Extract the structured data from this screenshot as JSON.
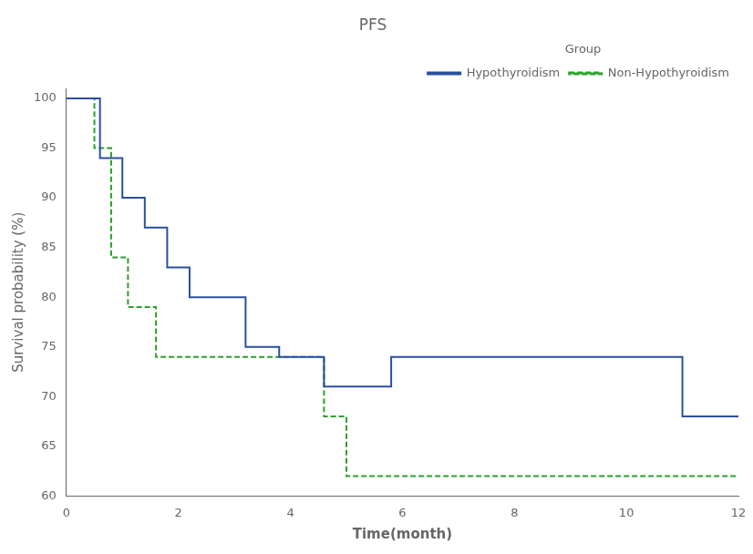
{
  "chart_data": {
    "type": "line",
    "title": "PFS",
    "x_label": "Time(month)",
    "y_label": "Survival probability (%)",
    "legend_title": "Group",
    "legend": "upper right",
    "grid": false,
    "xlim": [
      0,
      12
    ],
    "ylim": [
      60,
      101
    ],
    "xticks": [
      0,
      2,
      4,
      6,
      8,
      10,
      12
    ],
    "yticks": [
      60,
      65,
      70,
      75,
      80,
      85,
      90,
      95,
      100
    ],
    "series": [
      {
        "name": "Hypothyroidism",
        "color": "#2b4fa0",
        "line_style": "solid",
        "x": [
          0,
          0.6,
          0.6,
          1.0,
          1.0,
          1.4,
          1.4,
          1.8,
          1.8,
          2.2,
          2.2,
          2.7,
          2.7,
          3.2,
          3.2,
          3.8,
          3.8,
          4.6,
          4.6,
          5.8,
          5.8,
          11.0,
          11.0,
          12.0
        ],
        "values": [
          100,
          100,
          94,
          94,
          90,
          90,
          87,
          87,
          83,
          83,
          80,
          80,
          80,
          80,
          75,
          75,
          74,
          74,
          71,
          71,
          74,
          74,
          68,
          68
        ]
      },
      {
        "name": "Non-Hypothyroidism",
        "color": "#2ca02c",
        "line_style": "dashed",
        "x": [
          0,
          0.5,
          0.5,
          0.8,
          0.8,
          1.1,
          1.1,
          1.6,
          1.6,
          2.0,
          2.0,
          4.6,
          4.6,
          5.0,
          5.0,
          5.7,
          5.7,
          12.0
        ],
        "values": [
          100,
          100,
          95,
          95,
          84,
          84,
          79,
          79,
          74,
          74,
          74,
          74,
          68,
          68,
          62,
          62,
          62,
          62
        ]
      }
    ]
  }
}
